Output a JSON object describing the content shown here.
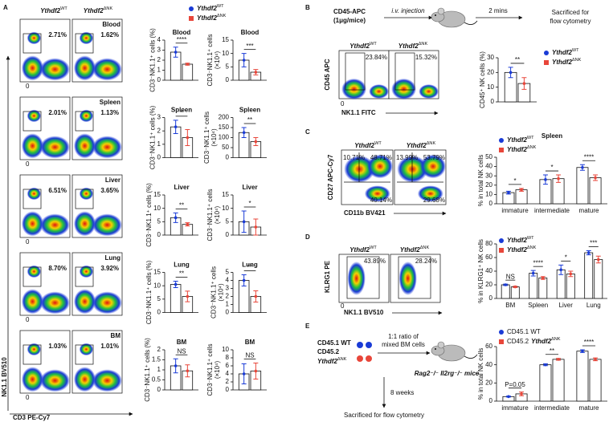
{
  "A": {
    "label": "A",
    "legend": [
      {
        "gene": "Ythdf2",
        "sup": "WT",
        "color": "#1a3bd6"
      },
      {
        "gene": "Ythdf2",
        "sup": "ΔNK",
        "color": "#e8463a"
      }
    ],
    "flow": {
      "genotypes": [
        {
          "gene": "Ythdf2",
          "sup": "WT"
        },
        {
          "gene": "Ythdf2",
          "sup": "ΔNK"
        }
      ],
      "x_axis": "CD3 PE-Cy7",
      "y_axis": "NK1.1 BV510",
      "zero": "0",
      "rows": [
        {
          "tissue": "Blood",
          "gates": [
            "2.71%",
            "1.62%"
          ]
        },
        {
          "tissue": "Spleen",
          "gates": [
            "2.01%",
            "1.13%"
          ]
        },
        {
          "tissue": "Liver",
          "gates": [
            "6.51%",
            "3.65%"
          ]
        },
        {
          "tissue": "Lung",
          "gates": [
            "8.70%",
            "3.92%"
          ]
        },
        {
          "tissue": "BM",
          "gates": [
            "1.03%",
            "1.01%"
          ]
        }
      ]
    },
    "charts": [
      {
        "title": "Blood",
        "ylabel": [
          "CD3⁻NK1.1⁺ cells (%)"
        ],
        "ylim": [
          0,
          4
        ],
        "yticks": [
          0,
          1,
          2,
          3,
          4
        ],
        "series": [
          {
            "color": "#1a3bd6",
            "values": [
              2.8
            ],
            "errors": [
              0.5
            ]
          },
          {
            "color": "#e8463a",
            "values": [
              1.6
            ],
            "errors": [
              0.1
            ]
          }
        ],
        "significance": [
          "****"
        ]
      },
      {
        "title": "Blood",
        "ylabel": [
          "CD3⁻NK1.1⁺ cells",
          "(×10⁴)"
        ],
        "ylim": [
          0,
          15
        ],
        "yticks": [
          0,
          5,
          10,
          15
        ],
        "series": [
          {
            "color": "#1a3bd6",
            "values": [
              7.5
            ],
            "errors": [
              2.5
            ]
          },
          {
            "color": "#e8463a",
            "values": [
              3
            ],
            "errors": [
              1
            ]
          }
        ],
        "significance": [
          "***"
        ]
      },
      {
        "title": "Spleen",
        "ylabel": [
          "CD3⁻NK1.1⁺ cells (%)"
        ],
        "ylim": [
          0,
          3
        ],
        "yticks": [
          0,
          1,
          2,
          3
        ],
        "series": [
          {
            "color": "#1a3bd6",
            "values": [
              2.3
            ],
            "errors": [
              0.5
            ]
          },
          {
            "color": "#e8463a",
            "values": [
              1.5
            ],
            "errors": [
              0.6
            ]
          }
        ],
        "significance": [
          "*"
        ]
      },
      {
        "title": "Spleen",
        "ylabel": [
          "CD3⁻NK1.1⁺ cells",
          "(×10⁴)"
        ],
        "ylim": [
          0,
          200
        ],
        "yticks": [
          0,
          50,
          100,
          150,
          200
        ],
        "series": [
          {
            "color": "#1a3bd6",
            "values": [
              125
            ],
            "errors": [
              25
            ]
          },
          {
            "color": "#e8463a",
            "values": [
              80
            ],
            "errors": [
              20
            ]
          }
        ],
        "significance": [
          "**"
        ]
      },
      {
        "title": "Liver",
        "ylabel": [
          "CD3⁻NK1.1⁺ cells (%)"
        ],
        "ylim": [
          0,
          15
        ],
        "yticks": [
          0,
          5,
          10,
          15
        ],
        "series": [
          {
            "color": "#1a3bd6",
            "values": [
              6.5
            ],
            "errors": [
              1.8
            ]
          },
          {
            "color": "#e8463a",
            "values": [
              4
            ],
            "errors": [
              0.6
            ]
          }
        ],
        "significance": [
          "**"
        ]
      },
      {
        "title": "Liver",
        "ylabel": [
          "CD3⁻NK1.1⁺ cells",
          "(×10⁴)"
        ],
        "ylim": [
          0,
          15
        ],
        "yticks": [
          0,
          5,
          10,
          15
        ],
        "series": [
          {
            "color": "#1a3bd6",
            "values": [
              5
            ],
            "errors": [
              4
            ]
          },
          {
            "color": "#e8463a",
            "values": [
              3
            ],
            "errors": [
              3
            ]
          }
        ],
        "significance": [
          "*"
        ]
      },
      {
        "title": "Lung",
        "ylabel": [
          "CD3⁻NK1.1⁺ cells (%)"
        ],
        "ylim": [
          0,
          15
        ],
        "yticks": [
          0,
          5,
          10,
          15
        ],
        "series": [
          {
            "color": "#1a3bd6",
            "values": [
              10.5
            ],
            "errors": [
              1.2
            ]
          },
          {
            "color": "#e8463a",
            "values": [
              6
            ],
            "errors": [
              2
            ]
          }
        ],
        "significance": [
          "**"
        ]
      },
      {
        "title": "Lung",
        "ylabel": [
          "CD3⁻NK1.1⁺ cells",
          "(×10⁴)"
        ],
        "ylim": [
          0,
          5
        ],
        "yticks": [
          0,
          1,
          2,
          3,
          4,
          5
        ],
        "series": [
          {
            "color": "#1a3bd6",
            "values": [
              4
            ],
            "errors": [
              0.7
            ]
          },
          {
            "color": "#e8463a",
            "values": [
              2
            ],
            "errors": [
              0.7
            ]
          }
        ],
        "significance": [
          "**"
        ]
      },
      {
        "title": "BM",
        "ylabel": [
          "CD3⁻NK1.1⁺ cells (%)"
        ],
        "ylim": [
          0,
          2
        ],
        "yticks": [
          0,
          0.5,
          1,
          1.5,
          2
        ],
        "series": [
          {
            "color": "#1a3bd6",
            "values": [
              1.2
            ],
            "errors": [
              0.35
            ]
          },
          {
            "color": "#e8463a",
            "values": [
              0.95
            ],
            "errors": [
              0.3
            ]
          }
        ],
        "significance": [
          "NS"
        ]
      },
      {
        "title": "BM",
        "ylabel": [
          "CD3⁻NK1.1⁺ cells",
          "(×10⁴)"
        ],
        "ylim": [
          0,
          10
        ],
        "yticks": [
          0,
          2,
          4,
          6,
          8,
          10
        ],
        "series": [
          {
            "color": "#1a3bd6",
            "values": [
              4
            ],
            "errors": [
              2.5
            ]
          },
          {
            "color": "#e8463a",
            "values": [
              4.7
            ],
            "errors": [
              2
            ]
          }
        ],
        "significance": [
          "NS"
        ]
      }
    ]
  },
  "B": {
    "label": "B",
    "reagent": [
      "CD45-APC",
      "(1μg/mice)"
    ],
    "step1": "i.v. injection",
    "step2": "2 mins",
    "end": [
      "Sacrificed for",
      "flow cytometry"
    ],
    "flow": {
      "genotypes": [
        {
          "gene": "Ythdf2",
          "sup": "WT"
        },
        {
          "gene": "Ythdf2",
          "sup": "ΔNK"
        }
      ],
      "gates": [
        "23.84%",
        "15.32%"
      ],
      "x_axis": "NK1.1 FITC",
      "y_axis": "CD45 APC",
      "zero": "0"
    },
    "legend": [
      {
        "gene": "Ythdf2",
        "sup": "WT",
        "color": "#1a3bd6"
      },
      {
        "gene": "Ythdf2",
        "sup": "ΔNK",
        "color": "#e8463a"
      }
    ],
    "chart": {
      "ylabel": [
        "CD45⁺ NK cells (%)"
      ],
      "ylim": [
        0,
        30
      ],
      "yticks": [
        0,
        10,
        20,
        30
      ],
      "series": [
        {
          "color": "#1a3bd6",
          "values": [
            20
          ],
          "errors": [
            3.5
          ]
        },
        {
          "color": "#e8463a",
          "values": [
            12.5
          ],
          "errors": [
            4
          ]
        }
      ],
      "significance": [
        "**"
      ]
    }
  },
  "C": {
    "label": "C",
    "flow": {
      "genotypes": [
        {
          "gene": "Ythdf2",
          "sup": "WT"
        },
        {
          "gene": "Ythdf2",
          "sup": "ΔNK"
        }
      ],
      "gates": [
        [
          "10.71%",
          "48.71%",
          "40.14%"
        ],
        [
          "13.99%",
          "53.79%",
          "29.68%"
        ]
      ],
      "x_axis": "CD11b BV421",
      "y_axis": "CD27 APC-Cy7"
    },
    "legend": [
      {
        "gene": "Ythdf2",
        "sup": "WT",
        "color": "#1a3bd6"
      },
      {
        "gene": "Ythdf2",
        "sup": "ΔNK",
        "color": "#e8463a"
      }
    ],
    "chart": {
      "title": "Spleen",
      "ylabel": [
        "% in total NK cells"
      ],
      "ylim": [
        0,
        50
      ],
      "yticks": [
        0,
        10,
        20,
        30,
        40,
        50
      ],
      "categories": [
        "immature",
        "intermediate",
        "mature"
      ],
      "series": [
        {
          "color": "#1a3bd6",
          "values": [
            12,
            26,
            39
          ],
          "errors": [
            1.5,
            5,
            3
          ]
        },
        {
          "color": "#e8463a",
          "values": [
            15,
            27,
            28
          ],
          "errors": [
            1.5,
            4,
            3
          ]
        }
      ],
      "significance": [
        "*",
        "*",
        "****"
      ]
    }
  },
  "D": {
    "label": "D",
    "flow": {
      "genotypes": [
        {
          "gene": "Ythdf2",
          "sup": "WT"
        },
        {
          "gene": "Ythdf2",
          "sup": "ΔNK"
        }
      ],
      "gates": [
        "43.89%",
        "28.24%"
      ],
      "x_axis": "NK1.1 BV510",
      "y_axis": "KLRG1 PE",
      "zero": "0"
    },
    "legend": [
      {
        "gene": "Ythdf2",
        "sup": "WT",
        "color": "#1a3bd6"
      },
      {
        "gene": "Ythdf2",
        "sup": "ΔNK",
        "color": "#e8463a"
      }
    ],
    "chart": {
      "ylabel": [
        "% in KLRG1⁺ NK cells"
      ],
      "ylim": [
        0,
        80
      ],
      "yticks": [
        0,
        20,
        40,
        60,
        80
      ],
      "categories": [
        "BM",
        "Spleen",
        "Liver",
        "Lung"
      ],
      "series": [
        {
          "color": "#1a3bd6",
          "values": [
            20,
            37,
            42,
            67
          ],
          "errors": [
            1,
            4,
            7,
            3
          ]
        },
        {
          "color": "#e8463a",
          "values": [
            17,
            30,
            36,
            57
          ],
          "errors": [
            1,
            2,
            4,
            5
          ]
        }
      ],
      "significance": [
        "NS",
        "****",
        "*",
        "***"
      ]
    }
  },
  "E": {
    "label": "E",
    "donors": [
      {
        "prefix": "CD45.1 WT"
      },
      {
        "prefix": "CD45.2"
      },
      {
        "gene": "Ythdf2",
        "sup": "ΔNK"
      }
    ],
    "mix": [
      "1:1 ratio of",
      "mixed BM cells"
    ],
    "recipient": "Rag2⁻/⁻ Il2rg⁻/⁻ mice",
    "wait": "8 weeks",
    "end": "Sacrificed for flow cytometry",
    "legend": [
      {
        "prefix": "CD45.1 WT",
        "color": "#1a3bd6"
      },
      {
        "prefix": "CD45.2",
        "gene": "Ythdf2",
        "sup": "ΔNK",
        "color": "#e8463a"
      }
    ],
    "chart": {
      "ylabel": [
        "% in total NK cells"
      ],
      "ylim": [
        0,
        60
      ],
      "yticks": [
        0,
        20,
        40,
        60
      ],
      "categories": [
        "immature",
        "intermediate",
        "mature"
      ],
      "series": [
        {
          "color": "#1a3bd6",
          "values": [
            5,
            40,
            55
          ],
          "errors": [
            0.5,
            1,
            1.5
          ]
        },
        {
          "color": "#e8463a",
          "values": [
            8,
            46,
            46
          ],
          "errors": [
            2,
            1,
            1.5
          ]
        }
      ],
      "significance": [
        "P=0.05",
        "**",
        "****"
      ]
    }
  }
}
